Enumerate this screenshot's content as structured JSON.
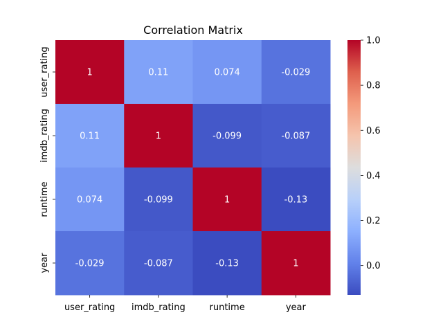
{
  "chart_data": {
    "type": "heatmap",
    "title": "Correlation Matrix",
    "x_categories": [
      "user_rating",
      "imdb_rating",
      "runtime",
      "year"
    ],
    "y_categories": [
      "user_rating",
      "imdb_rating",
      "runtime",
      "year"
    ],
    "values": [
      [
        1,
        0.11,
        0.074,
        -0.029
      ],
      [
        0.11,
        1,
        -0.099,
        -0.087
      ],
      [
        0.074,
        -0.099,
        1,
        -0.13
      ],
      [
        -0.029,
        -0.087,
        -0.13,
        1
      ]
    ],
    "annotations": [
      [
        "1",
        "0.11",
        "0.074",
        "-0.029"
      ],
      [
        "0.11",
        "1",
        "-0.099",
        "-0.087"
      ],
      [
        "0.074",
        "-0.099",
        "1",
        "-0.13"
      ],
      [
        "-0.029",
        "-0.087",
        "-0.13",
        "1"
      ]
    ],
    "colormap": "coolwarm",
    "color_range": [
      -0.13,
      1.0
    ],
    "colorbar_ticks": [
      0.0,
      0.2,
      0.4,
      0.6,
      0.8,
      1.0
    ],
    "colorbar_tick_labels": [
      "0.0",
      "0.2",
      "0.4",
      "0.6",
      "0.8",
      "1.0"
    ]
  }
}
